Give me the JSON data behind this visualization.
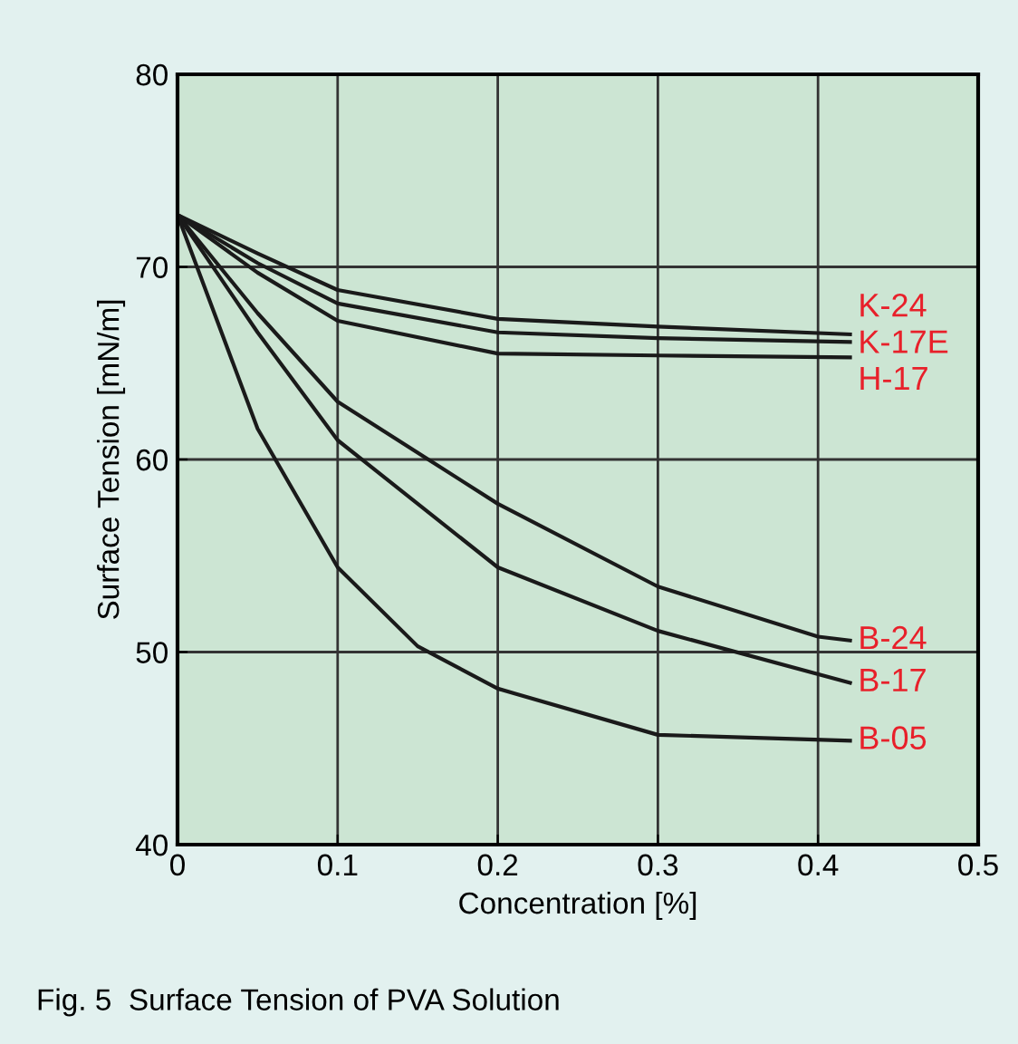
{
  "chart_data": {
    "type": "line",
    "xlabel": "Concentration [%]",
    "ylabel": "Surface Tension [mN/m]",
    "x": [
      0,
      0.05,
      0.1,
      0.2,
      0.3,
      0.42
    ],
    "series": [
      {
        "name": "K-24",
        "color": "#1a1a1a",
        "values": [
          72.7,
          70.7,
          68.8,
          67.3,
          66.9,
          66.5
        ]
      },
      {
        "name": "K-17E",
        "color": "#1a1a1a",
        "values": [
          72.7,
          70.2,
          68.1,
          66.6,
          66.3,
          66.1
        ]
      },
      {
        "name": "H-17",
        "color": "#1a1a1a",
        "values": [
          72.7,
          69.7,
          67.2,
          65.5,
          65.4,
          65.3
        ]
      },
      {
        "name": "B-24",
        "color": "#1a1a1a",
        "x": [
          0,
          0.05,
          0.1,
          0.2,
          0.3,
          0.4,
          0.42
        ],
        "values": [
          72.7,
          67.6,
          63.0,
          57.7,
          53.4,
          50.8,
          50.6
        ]
      },
      {
        "name": "B-17",
        "color": "#1a1a1a",
        "values": [
          72.7,
          66.6,
          61.0,
          54.4,
          51.1,
          48.4
        ]
      },
      {
        "name": "B-05",
        "color": "#1a1a1a",
        "x": [
          0,
          0.05,
          0.1,
          0.15,
          0.2,
          0.3,
          0.42
        ],
        "values": [
          72.7,
          61.6,
          54.4,
          50.3,
          48.1,
          45.7,
          45.4
        ]
      }
    ],
    "xlim": [
      0,
      0.5
    ],
    "ylim": [
      40,
      80
    ],
    "xticks": [
      0,
      0.1,
      0.2,
      0.3,
      0.4,
      0.5
    ],
    "yticks": [
      40,
      50,
      60,
      70,
      80
    ],
    "grid": true,
    "legend": false,
    "marker": "none",
    "line_style": "solid",
    "annotations": [
      "Fig. 5  Surface Tension of PVA Solution"
    ]
  }
}
